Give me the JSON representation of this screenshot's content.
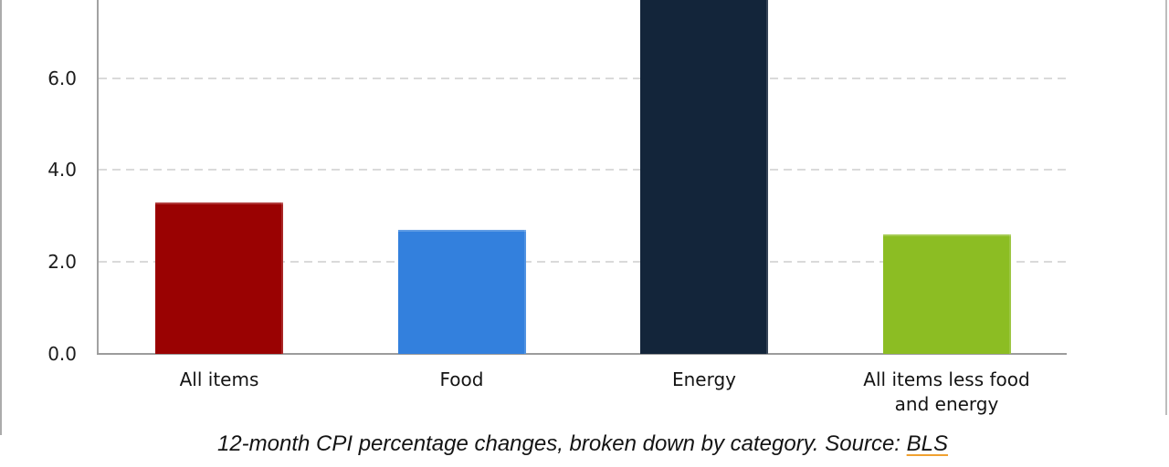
{
  "caption": {
    "text_before_link": "12-month CPI percentage changes, broken down by category. Source: ",
    "link_text": "BLS",
    "link_underline_color": "#f0a130"
  },
  "chart_data": {
    "type": "bar",
    "title": "",
    "xlabel": "",
    "ylabel": "",
    "categories": [
      "All items",
      "Food",
      "Energy",
      "All items less food and energy"
    ],
    "values": [
      3.3,
      2.7,
      7.8,
      2.6
    ],
    "bar_colors": [
      "#9a0202",
      "#3380dd",
      "#13253a",
      "#8cbd23"
    ],
    "y_ticks": [
      "0.0",
      "2.0",
      "4.0",
      "6.0"
    ],
    "ylim_visible": [
      0,
      7.7
    ],
    "grid": "horizontal dashed gridlines at labeled ticks",
    "legend": "none",
    "axis_color": "#9c9c9c",
    "gridline_color": "#dadada",
    "notes": "Energy bar is clipped by the top edge of the image; its top (true value) is not visible, it exceeds ~7.7"
  }
}
